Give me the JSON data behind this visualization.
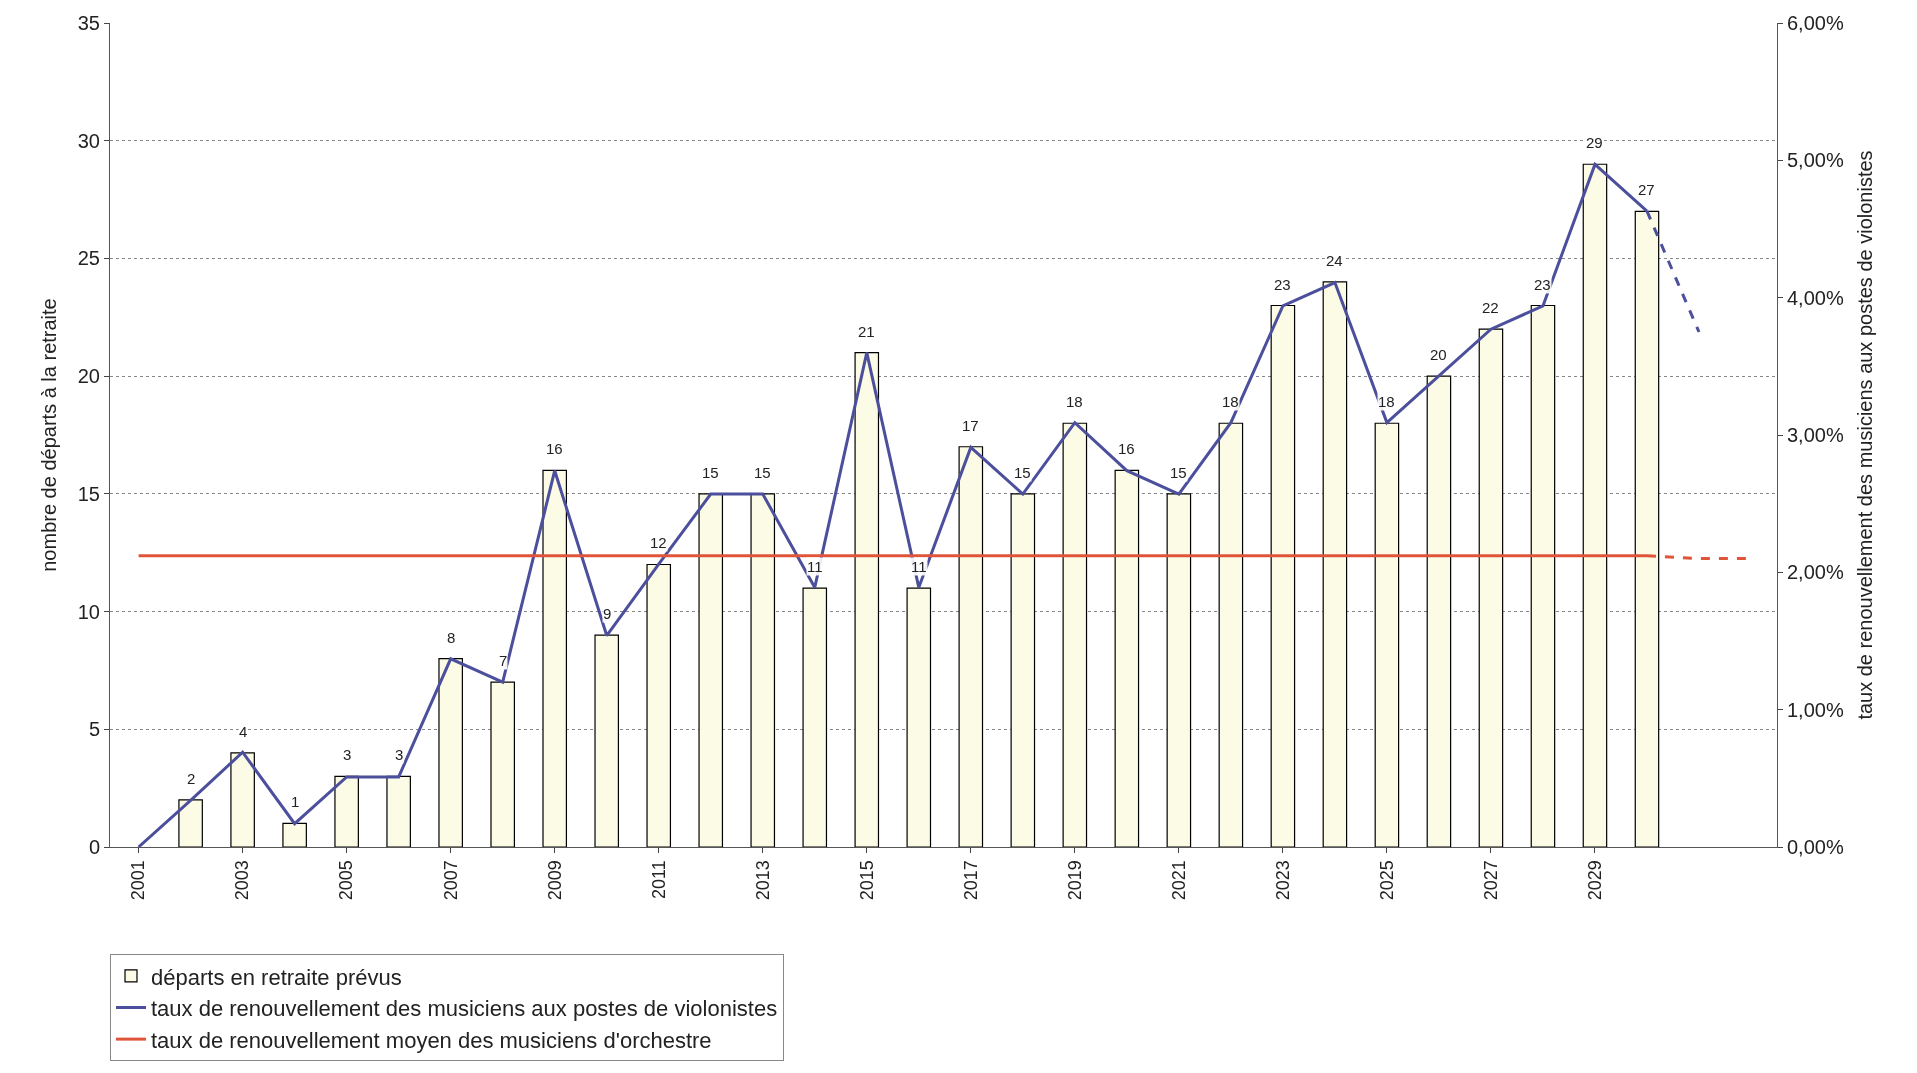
{
  "chart_data": {
    "type": "bar",
    "categories": [
      "2001",
      null,
      "2003",
      null,
      "2005",
      null,
      "2007",
      null,
      "2009",
      null,
      "2011",
      null,
      "2013",
      null,
      "2015",
      null,
      "2017",
      null,
      "2019",
      null,
      "2021",
      null,
      "2023",
      null,
      "2025",
      null,
      "2027",
      null,
      "2029",
      null,
      null,
      null
    ],
    "ylabel": "nombre de départs à la retraite",
    "y2label": "taux de renouvellement des musiciens aux postes de violonistes",
    "ylim": [
      0,
      35
    ],
    "yticks": [
      0,
      5,
      10,
      15,
      20,
      25,
      30,
      35
    ],
    "y2lim": [
      0,
      6
    ],
    "y2ticks": [
      {
        "value": 0,
        "label": "0,00%"
      },
      {
        "value": 1,
        "label": "1,00%"
      },
      {
        "value": 2,
        "label": "2,00%"
      },
      {
        "value": 3,
        "label": "3,00%"
      },
      {
        "value": 4,
        "label": "4,00%"
      },
      {
        "value": 5,
        "label": "5,00%"
      },
      {
        "value": 6,
        "label": "6,00%"
      }
    ],
    "grid": "y",
    "legend": "bottom left",
    "marker": "none",
    "series": [
      {
        "name": "départs en retraite prévus",
        "color": "#fbfbe6",
        "values": [
          null,
          2,
          4,
          1,
          3,
          3,
          8,
          7,
          16,
          9,
          12,
          15,
          15,
          11,
          21,
          11,
          17,
          15,
          18,
          16,
          15,
          18,
          23,
          24,
          18,
          20,
          22,
          23,
          29,
          27,
          null,
          null
        ],
        "value_labels": [
          null,
          "2",
          "4",
          "1",
          "3",
          "3",
          "8",
          "7",
          "16",
          "9",
          "12",
          "15",
          "15",
          "11",
          "21",
          "11",
          "17",
          "15",
          "18",
          "16",
          "15",
          "18",
          "23",
          "24",
          "18",
          "20",
          "22",
          "23",
          "29",
          "27",
          null,
          null
        ]
      },
      {
        "name": "taux de renouvellement des musiciens aux postes de violonistes",
        "type": "line",
        "axis": "y2",
        "color": "#4b4f9c",
        "line_style": "solid",
        "values": [
          0,
          0.34,
          0.69,
          0.17,
          0.51,
          0.51,
          1.37,
          1.2,
          2.74,
          1.54,
          2.06,
          2.57,
          2.57,
          1.89,
          3.6,
          1.89,
          2.91,
          2.57,
          3.09,
          2.74,
          2.57,
          3.09,
          3.94,
          4.11,
          3.09,
          3.43,
          3.77,
          3.94,
          4.97,
          4.63,
          null,
          null
        ]
      },
      {
        "name": "taux de renouvellement moyen des musiciens d'orchestre",
        "type": "line",
        "axis": "y2",
        "color": "#e0553a",
        "line_style": "solid",
        "values": [
          2.12,
          2.12,
          2.12,
          2.12,
          2.12,
          2.12,
          2.12,
          2.12,
          2.12,
          2.12,
          2.12,
          2.12,
          2.12,
          2.12,
          2.12,
          2.12,
          2.12,
          2.12,
          2.12,
          2.12,
          2.12,
          2.12,
          2.12,
          2.12,
          2.12,
          2.12,
          2.12,
          2.12,
          2.12,
          2.12,
          null,
          null
        ]
      },
      {
        "type": "line",
        "axis": "y2",
        "color": "#4b4f9c",
        "line_style": "dashed",
        "values": [
          null,
          null,
          null,
          null,
          null,
          null,
          null,
          null,
          null,
          null,
          null,
          null,
          null,
          null,
          null,
          null,
          null,
          null,
          null,
          null,
          null,
          null,
          null,
          null,
          null,
          null,
          null,
          null,
          null,
          4.63,
          3.75,
          null
        ]
      },
      {
        "type": "line",
        "axis": "y2",
        "color": "#e0553a",
        "line_style": "dashed",
        "values": [
          null,
          null,
          null,
          null,
          null,
          null,
          null,
          null,
          null,
          null,
          null,
          null,
          null,
          null,
          null,
          null,
          null,
          null,
          null,
          null,
          null,
          null,
          null,
          null,
          null,
          null,
          null,
          null,
          null,
          2.12,
          2.1,
          2.1
        ]
      }
    ]
  }
}
